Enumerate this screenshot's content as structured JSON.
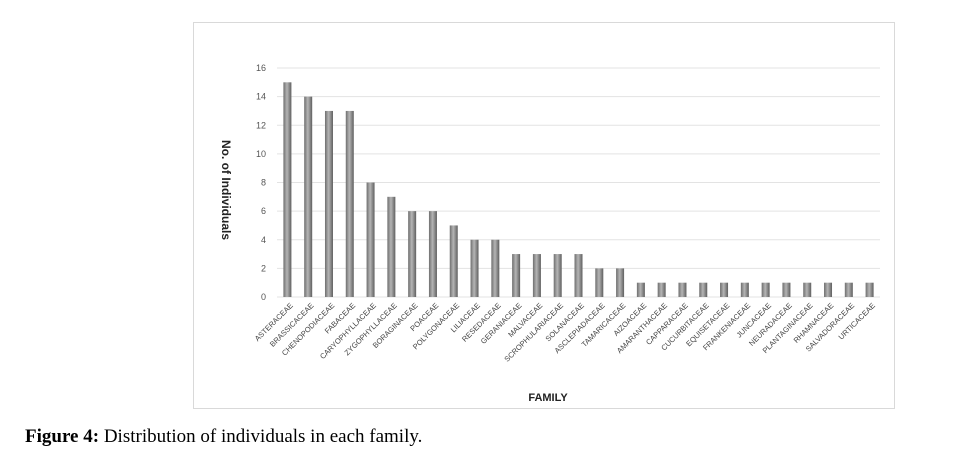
{
  "chart_data": {
    "type": "bar",
    "xlabel": "FAMILY",
    "ylabel": "No. of Individuals",
    "ylim": [
      0,
      16
    ],
    "yticks": [
      0,
      2,
      4,
      6,
      8,
      10,
      12,
      14,
      16
    ],
    "grid": true,
    "legend": "none",
    "categories": [
      "ASTERACEAE",
      "BRASSICACEAE",
      "CHENOPODIACEAE",
      "FABACEAE",
      "CARYOPHYLLACEAE",
      "ZYGOPHYLLACEAE",
      "BORAGINACEAE",
      "POACEAE",
      "POLYGONACEAE",
      "LILIACEAE",
      "RESEDACEAE",
      "GERANIACEAE",
      "MALVACEAE",
      "SCROPHULARIACEAE",
      "SOLANACEAE",
      "ASCLEPIADACEAE",
      "TAMARICACEAE",
      "AIZOACEAE",
      "AMARANTHACEAE",
      "CAPPARACEAE",
      "CUCURBITACEAE",
      "EQUISETACEAE",
      "FRANKENIACEAE",
      "JUNCACEAE",
      "NEURADACEAE",
      "PLANTAGINACEAE",
      "RHAMNACEAE",
      "SALVADORACEAE",
      "URTICACEAE"
    ],
    "values": [
      15,
      14,
      13,
      13,
      8,
      7,
      6,
      6,
      5,
      4,
      4,
      3,
      3,
      3,
      3,
      2,
      2,
      1,
      1,
      1,
      1,
      1,
      1,
      1,
      1,
      1,
      1,
      1,
      1
    ],
    "bar_color": "#8c8c8c"
  },
  "caption": {
    "label": "Figure 4:",
    "text": " Distribution of individuals in each family."
  }
}
